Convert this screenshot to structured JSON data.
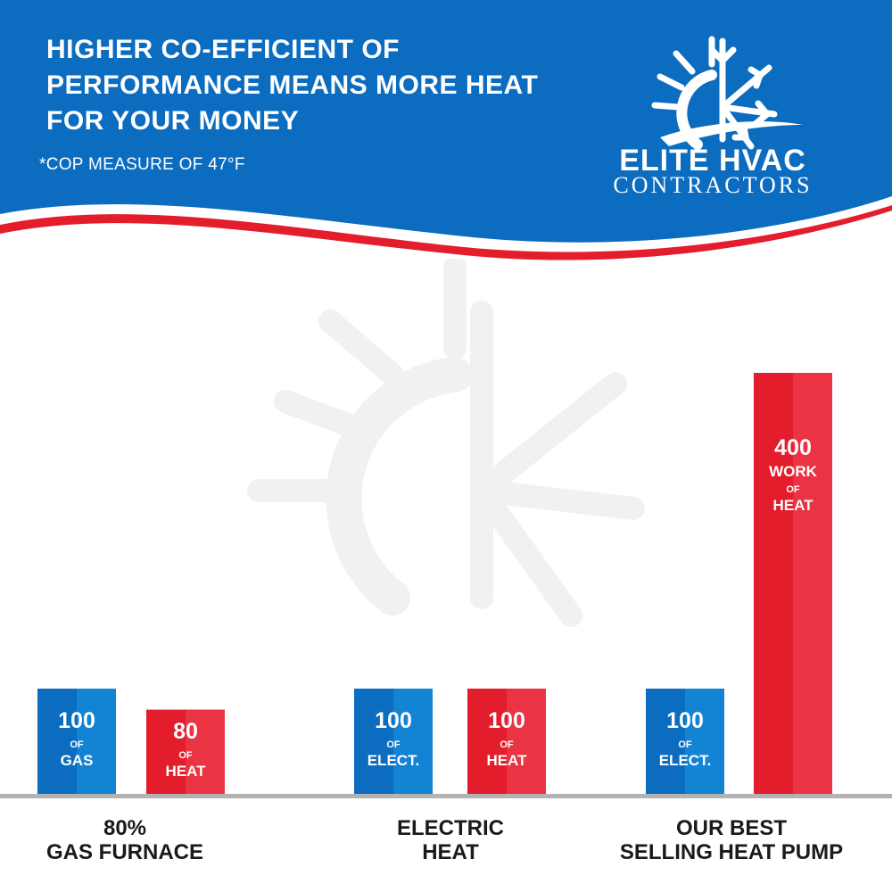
{
  "header": {
    "headline": "HIGHER CO-EFFICIENT OF PERFORMANCE MEANS MORE HEAT FOR YOUR MONEY",
    "footnote": "*COP MEASURE OF 47°F",
    "colors": {
      "blue": "#0b6cc0",
      "red": "#e31d2b",
      "white": "#ffffff"
    }
  },
  "logo": {
    "name": "ELITE HVAC",
    "subtitle": "CONTRACTORS",
    "icon": "sun-snowflake-icon"
  },
  "chart_data": {
    "type": "bar",
    "ylim": [
      0,
      400
    ],
    "grid": false,
    "colors": {
      "input": "#0b6cc0",
      "output": "#e31d2b"
    },
    "groups": [
      {
        "label": "80%\nGAS FURNACE",
        "bars": [
          {
            "kind": "input",
            "value": 100,
            "num": "100",
            "of": "OF",
            "unit": "GAS"
          },
          {
            "kind": "output",
            "value": 80,
            "num": "80",
            "of": "OF",
            "unit": "HEAT"
          }
        ]
      },
      {
        "label": "ELECTRIC\nHEAT",
        "bars": [
          {
            "kind": "input",
            "value": 100,
            "num": "100",
            "of": "OF",
            "unit": "ELECT."
          },
          {
            "kind": "output",
            "value": 100,
            "num": "100",
            "of": "OF",
            "unit": "HEAT"
          }
        ]
      },
      {
        "label": "OUR BEST\nSELLING HEAT PUMP",
        "bars": [
          {
            "kind": "input",
            "value": 100,
            "num": "100",
            "of": "OF",
            "unit": "ELECT."
          },
          {
            "kind": "output",
            "value": 400,
            "num": "400",
            "extra": "WORK",
            "of": "OF",
            "unit": "HEAT"
          }
        ]
      }
    ]
  }
}
